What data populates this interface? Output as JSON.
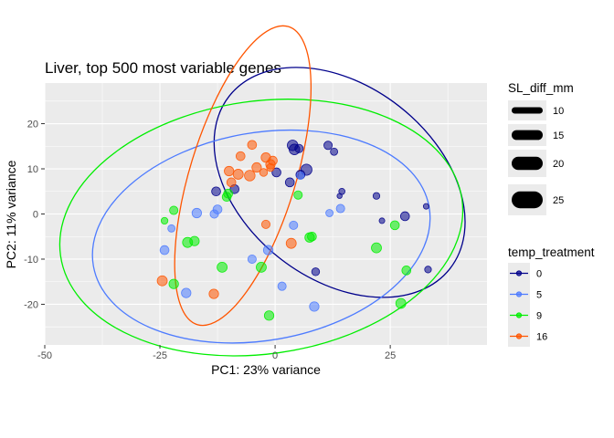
{
  "chart_data": {
    "type": "scatter",
    "title": "Liver, top 500 most variable genes",
    "xlabel": "PC1: 23% variance",
    "ylabel": "PC2: 11% variance",
    "xlim": [
      -50,
      46
    ],
    "ylim": [
      -29,
      29
    ],
    "xticks": [
      -50,
      -25,
      0,
      25
    ],
    "yticks": [
      -20,
      -10,
      0,
      10,
      20
    ],
    "grid": true,
    "size_legend": {
      "title": "SL_diff_mm",
      "values": [
        10,
        15,
        20,
        25
      ]
    },
    "color_legend": {
      "title": "temp_treatment",
      "entries": [
        {
          "label": "0",
          "color": "#00008B"
        },
        {
          "label": "5",
          "color": "#4D7BFF"
        },
        {
          "label": "9",
          "color": "#00EE00"
        },
        {
          "label": "16",
          "color": "#FF5500"
        }
      ]
    },
    "ellipses": [
      {
        "group": "0",
        "cx": 14,
        "cy": 7,
        "rx": 21,
        "ry": 31,
        "angle": -52
      },
      {
        "group": "5",
        "cx": -3,
        "cy": -5,
        "rx": 37,
        "ry": 23,
        "angle": -10
      },
      {
        "group": "9",
        "cx": -3,
        "cy": -3,
        "rx": 44,
        "ry": 28,
        "angle": -8
      },
      {
        "group": "16",
        "cx": -7,
        "cy": 8.5,
        "rx": 11.5,
        "ry": 34.5,
        "angle": 17
      }
    ],
    "series": [
      {
        "name": "0",
        "points": [
          {
            "x": 3.8,
            "y": 15.2,
            "s": 17
          },
          {
            "x": 4.2,
            "y": 14.3,
            "s": 17
          },
          {
            "x": 5.2,
            "y": 14.5,
            "s": 13
          },
          {
            "x": 6.8,
            "y": 9.8,
            "s": 18
          },
          {
            "x": 5.5,
            "y": 8.7,
            "s": 14
          },
          {
            "x": 3.2,
            "y": 7.0,
            "s": 14
          },
          {
            "x": 0.3,
            "y": 9.2,
            "s": 14
          },
          {
            "x": 11.5,
            "y": 15.2,
            "s": 13
          },
          {
            "x": 12.8,
            "y": 13.8,
            "s": 11
          },
          {
            "x": 14.5,
            "y": 5.0,
            "s": 9
          },
          {
            "x": 14.0,
            "y": 4.0,
            "s": 7
          },
          {
            "x": 22.0,
            "y": 4.0,
            "s": 10
          },
          {
            "x": 23.2,
            "y": -1.5,
            "s": 8
          },
          {
            "x": 28.2,
            "y": -0.5,
            "s": 14
          },
          {
            "x": 32.8,
            "y": 1.7,
            "s": 8
          },
          {
            "x": 33.2,
            "y": -12.3,
            "s": 10
          },
          {
            "x": 8.8,
            "y": -12.8,
            "s": 12
          },
          {
            "x": -8.8,
            "y": 5.5,
            "s": 14
          },
          {
            "x": -12.8,
            "y": 5.0,
            "s": 14
          }
        ]
      },
      {
        "name": "5",
        "points": [
          {
            "x": -24.0,
            "y": -8.0,
            "s": 14
          },
          {
            "x": -22.5,
            "y": -3.2,
            "s": 11
          },
          {
            "x": -19.3,
            "y": -17.5,
            "s": 15
          },
          {
            "x": -17.0,
            "y": 0.2,
            "s": 15
          },
          {
            "x": -13.2,
            "y": 0.0,
            "s": 13
          },
          {
            "x": -12.5,
            "y": 1.0,
            "s": 14
          },
          {
            "x": -5.0,
            "y": -10.0,
            "s": 13
          },
          {
            "x": -1.5,
            "y": -8.0,
            "s": 15
          },
          {
            "x": 1.5,
            "y": -16.0,
            "s": 13
          },
          {
            "x": 4.0,
            "y": -2.5,
            "s": 13
          },
          {
            "x": 5.5,
            "y": 8.5,
            "s": 11
          },
          {
            "x": 8.5,
            "y": -20.5,
            "s": 15
          },
          {
            "x": 11.8,
            "y": 0.2,
            "s": 11
          },
          {
            "x": 14.2,
            "y": 1.2,
            "s": 13
          }
        ]
      },
      {
        "name": "9",
        "points": [
          {
            "x": -24.0,
            "y": -1.5,
            "s": 10
          },
          {
            "x": -22.0,
            "y": 0.8,
            "s": 13
          },
          {
            "x": -22.0,
            "y": -15.5,
            "s": 15
          },
          {
            "x": -19.0,
            "y": -6.3,
            "s": 16
          },
          {
            "x": -17.5,
            "y": -6.0,
            "s": 15
          },
          {
            "x": -11.5,
            "y": -11.8,
            "s": 16
          },
          {
            "x": -10.2,
            "y": 4.5,
            "s": 14
          },
          {
            "x": -10.5,
            "y": 3.8,
            "s": 14
          },
          {
            "x": -3.0,
            "y": -11.8,
            "s": 16
          },
          {
            "x": -1.3,
            "y": -22.5,
            "s": 15
          },
          {
            "x": 5.0,
            "y": 4.2,
            "s": 13
          },
          {
            "x": 7.5,
            "y": -5.2,
            "s": 15
          },
          {
            "x": 8.0,
            "y": -5.0,
            "s": 14
          },
          {
            "x": 22.0,
            "y": -7.5,
            "s": 16
          },
          {
            "x": 26.0,
            "y": -2.5,
            "s": 14
          },
          {
            "x": 27.3,
            "y": -19.8,
            "s": 16
          },
          {
            "x": 28.5,
            "y": -12.5,
            "s": 14
          }
        ]
      },
      {
        "name": "16",
        "points": [
          {
            "x": -24.5,
            "y": -14.8,
            "s": 16
          },
          {
            "x": -13.3,
            "y": -17.7,
            "s": 15
          },
          {
            "x": -10.0,
            "y": 9.5,
            "s": 15
          },
          {
            "x": -9.5,
            "y": 7.0,
            "s": 14
          },
          {
            "x": -8.0,
            "y": 8.8,
            "s": 16
          },
          {
            "x": -7.5,
            "y": 12.8,
            "s": 14
          },
          {
            "x": -5.5,
            "y": 8.5,
            "s": 17
          },
          {
            "x": -5.0,
            "y": 15.3,
            "s": 14
          },
          {
            "x": -4.0,
            "y": 10.3,
            "s": 15
          },
          {
            "x": -2.5,
            "y": 9.2,
            "s": 12
          },
          {
            "x": -2.0,
            "y": 12.5,
            "s": 15
          },
          {
            "x": -1.0,
            "y": 11.0,
            "s": 15
          },
          {
            "x": -0.5,
            "y": 11.8,
            "s": 14
          },
          {
            "x": -1.0,
            "y": 10.3,
            "s": 12
          },
          {
            "x": -2.0,
            "y": -2.3,
            "s": 13
          },
          {
            "x": 3.5,
            "y": -6.5,
            "s": 16
          }
        ]
      }
    ]
  }
}
